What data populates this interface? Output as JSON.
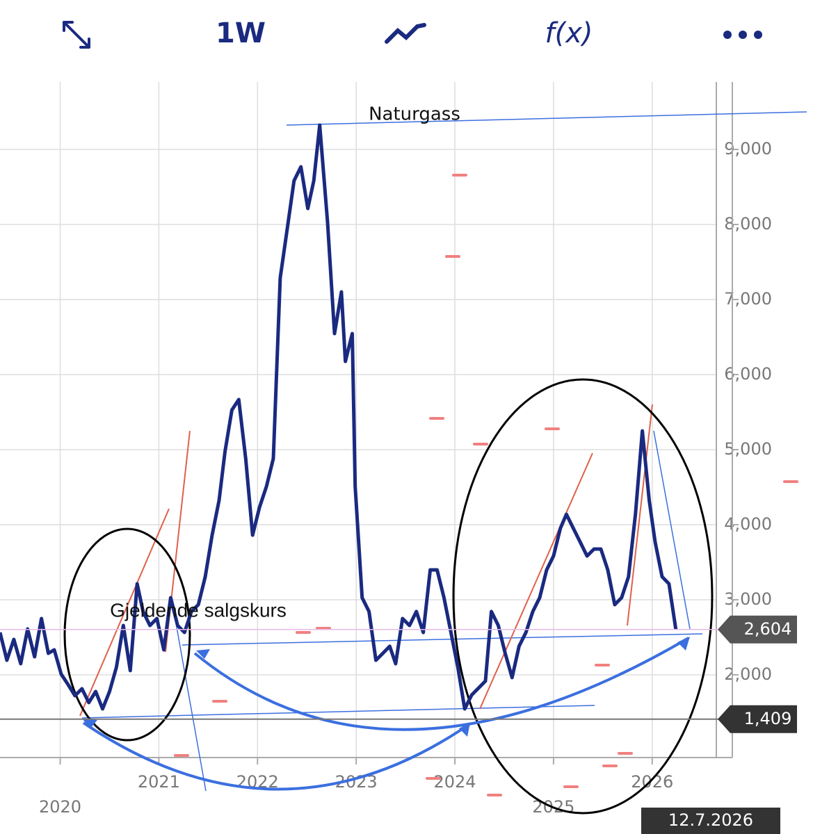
{
  "toolbar": {
    "interval": "1W",
    "function": "f(x)"
  },
  "chart_data": {
    "type": "line",
    "title": "Naturgass",
    "annotation": "Gjeldende salgskurs",
    "x": [
      2019.39,
      2019.46,
      2019.53,
      2019.6,
      2019.67,
      2019.74,
      2019.81,
      2019.88,
      2019.94,
      2020.01,
      2020.08,
      2020.15,
      2020.22,
      2020.29,
      2020.36,
      2020.43,
      2020.5,
      2020.57,
      2020.64,
      2020.71,
      2020.78,
      2020.84,
      2020.91,
      2020.98,
      2021.05,
      2021.12,
      2021.19,
      2021.26,
      2021.33,
      2021.4,
      2021.47,
      2021.54,
      2021.61,
      2021.67,
      2021.74,
      2021.81,
      2021.88,
      2021.95,
      2022.02,
      2022.09,
      2022.16,
      2022.23,
      2022.3,
      2022.37,
      2022.44,
      2022.51,
      2022.57,
      2022.63,
      2022.71,
      2022.78,
      2022.85,
      2022.89,
      2022.96,
      2022.99,
      2023.06,
      2023.13,
      2023.2,
      2023.27,
      2023.34,
      2023.4,
      2023.47,
      2023.54,
      2023.61,
      2023.68,
      2023.75,
      2023.82,
      2023.89,
      2023.96,
      2024.03,
      2024.1,
      2024.17,
      2024.24,
      2024.31,
      2024.37,
      2024.44,
      2024.51,
      2024.58,
      2024.65,
      2024.72,
      2024.79,
      2024.86,
      2024.93,
      2025.0,
      2025.07,
      2025.13,
      2025.2,
      2025.27,
      2025.34,
      2025.41,
      2025.48,
      2025.55,
      2025.62,
      2025.69,
      2025.76,
      2025.83,
      2025.9,
      2025.97,
      2026.03,
      2026.1,
      2026.17,
      2026.24
    ],
    "series": [
      {
        "name": "Naturgass",
        "color": "#1a2a80",
        "values": [
          2565,
          2194,
          2472,
          2148,
          2611,
          2241,
          2750,
          2287,
          2333,
          2009,
          1870,
          1722,
          1815,
          1630,
          1778,
          1546,
          1778,
          2102,
          2657,
          2056,
          3213,
          2843,
          2657,
          2750,
          2333,
          3028,
          2657,
          2565,
          2843,
          2935,
          3306,
          3861,
          4324,
          4972,
          5528,
          5667,
          4880,
          3861,
          4231,
          4509,
          4880,
          7287,
          7935,
          8583,
          8768,
          8213,
          8583,
          9324,
          8028,
          6546,
          7102,
          6176,
          6546,
          4509,
          3028,
          2843,
          2194,
          2287,
          2380,
          2148,
          2750,
          2657,
          2843,
          2565,
          3398,
          3398,
          3028,
          2565,
          2102,
          1546,
          1731,
          1824,
          1917,
          2843,
          2657,
          2287,
          1963,
          2380,
          2565,
          2843,
          3028,
          3398,
          3583,
          3954,
          4139,
          3954,
          3769,
          3583,
          3676,
          3676,
          3398,
          2935,
          3028,
          3306,
          4139,
          5250,
          4324,
          3769,
          3306,
          3213,
          2604
        ]
      }
    ],
    "xlim": [
      2019.39,
      2026.65
    ],
    "xticks": [
      2020,
      2021,
      2022,
      2023,
      2024,
      2025,
      2026
    ],
    "ylim": [
      898,
      9898
    ],
    "yticks": [
      {
        "value": 2000,
        "label": "2,000"
      },
      {
        "value": 3000,
        "label": "3,000"
      },
      {
        "value": 4000,
        "label": "4,000"
      },
      {
        "value": 5000,
        "label": "5,000"
      },
      {
        "value": 6000,
        "label": "6,000"
      },
      {
        "value": 7000,
        "label": "7,000"
      },
      {
        "value": 8000,
        "label": "8,000"
      },
      {
        "value": 9000,
        "label": "9,000"
      }
    ],
    "price_tags": [
      {
        "value": 2604,
        "label": "2,604"
      },
      {
        "value": 1409,
        "label": "1,409"
      }
    ],
    "crosshair_date": "12.7.2026",
    "grid": true
  }
}
